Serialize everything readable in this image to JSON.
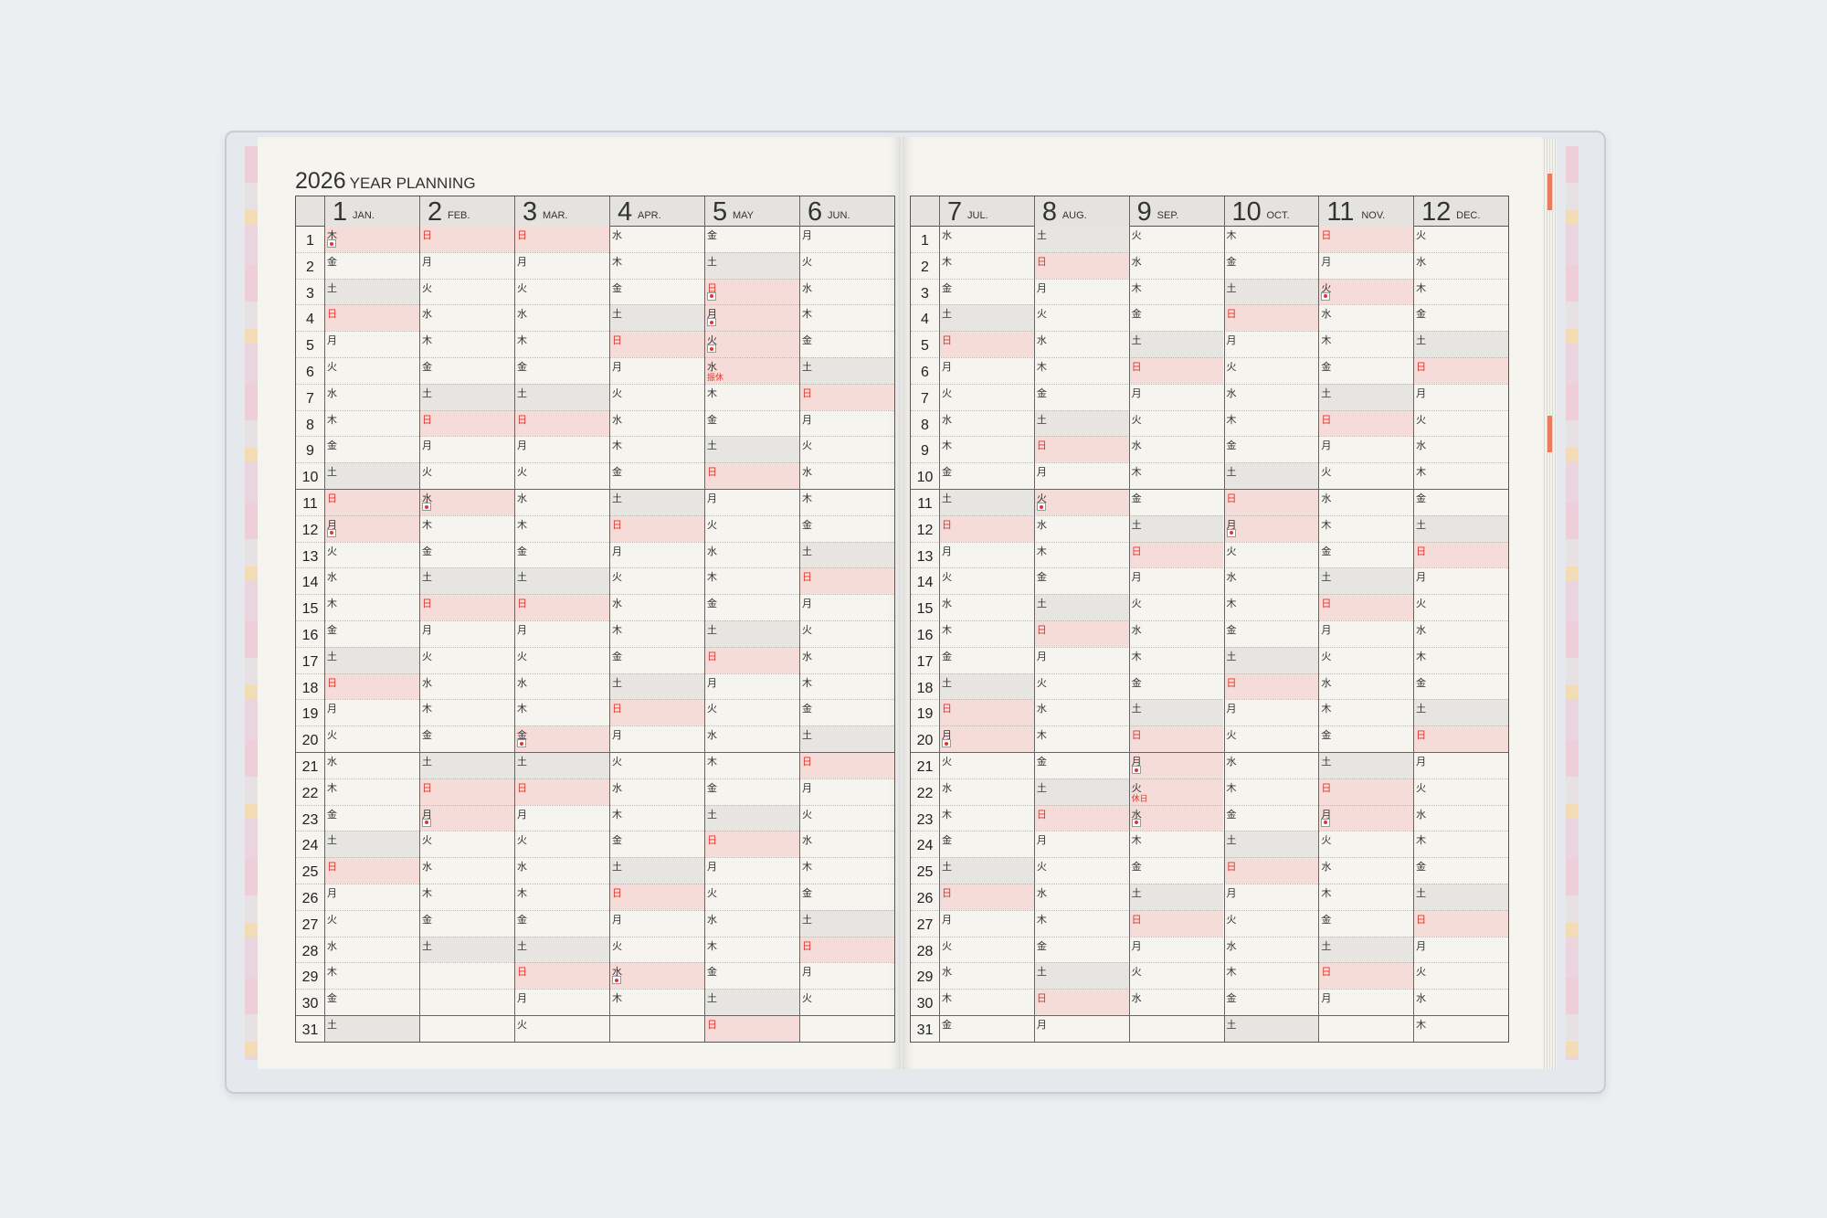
{
  "title": {
    "year": "2026",
    "label": "YEAR PLANNING"
  },
  "colors": {
    "sunday_holiday_text": "#d9382e",
    "sunday_holiday_fill": "#f6dcd8",
    "saturday_fill": "#e6e5e2"
  },
  "day_numbers": [
    "1",
    "2",
    "3",
    "4",
    "5",
    "6",
    "7",
    "8",
    "9",
    "10",
    "11",
    "12",
    "13",
    "14",
    "15",
    "16",
    "17",
    "18",
    "19",
    "20",
    "21",
    "22",
    "23",
    "24",
    "25",
    "26",
    "27",
    "28",
    "29",
    "30",
    "31"
  ],
  "months": [
    {
      "num": "1",
      "abbr": "JAN.",
      "weekdays": "木金土日月火水木金土日月火水木金土日月火水木金土日月火水木金土",
      "holidays": [
        1,
        12
      ]
    },
    {
      "num": "2",
      "abbr": "FEB.",
      "weekdays": "日月火水木金土日月火水木金土日月火水木金土日月火水木金土",
      "holidays": [
        11,
        23
      ]
    },
    {
      "num": "3",
      "abbr": "MAR.",
      "weekdays": "日月火水木金土日月火水木金土日月火水木金土日月火水木金土日月火",
      "holidays": [
        20
      ]
    },
    {
      "num": "4",
      "abbr": "APR.",
      "weekdays": "水木金土日月火水木金土日月火水木金土日月火水木金土日月火水木",
      "holidays": [
        29
      ]
    },
    {
      "num": "5",
      "abbr": "MAY",
      "weekdays": "金土日月火水木金土日月火水木金土日月火水木金土日月火水木金土日",
      "holidays": [
        3,
        4,
        5
      ],
      "notes": {
        "6": "振休"
      }
    },
    {
      "num": "6",
      "abbr": "JUN.",
      "weekdays": "月火水木金土日月火水木金土日月火水木金土日月火水木金土日月火",
      "holidays": []
    },
    {
      "num": "7",
      "abbr": "JUL.",
      "weekdays": "水木金土日月火水木金土日月火水木金土日月火水木金土日月火水木金",
      "holidays": [
        20
      ]
    },
    {
      "num": "8",
      "abbr": "AUG.",
      "weekdays": "土日月火水木金土日月火水木金土日月火水木金土日月火水木金土日月",
      "holidays": [
        11
      ]
    },
    {
      "num": "9",
      "abbr": "SEP.",
      "weekdays": "火水木金土日月火水木金土日月火水木金土日月火水木金土日月火水",
      "holidays": [
        21,
        23
      ],
      "notes": {
        "22": "休日"
      }
    },
    {
      "num": "10",
      "abbr": "OCT.",
      "weekdays": "木金土日月火水木金土日月火水木金土日月火水木金土日月火水木金土",
      "holidays": [
        12
      ]
    },
    {
      "num": "11",
      "abbr": "NOV.",
      "weekdays": "日月火水木金土日月火水木金土日月火水木金土日月火水木金土日月",
      "holidays": [
        3,
        23
      ]
    },
    {
      "num": "12",
      "abbr": "DEC.",
      "weekdays": "火水木金土日月火水木金土日月火水木金土日月火水木金土日月火水木",
      "holidays": []
    }
  ]
}
